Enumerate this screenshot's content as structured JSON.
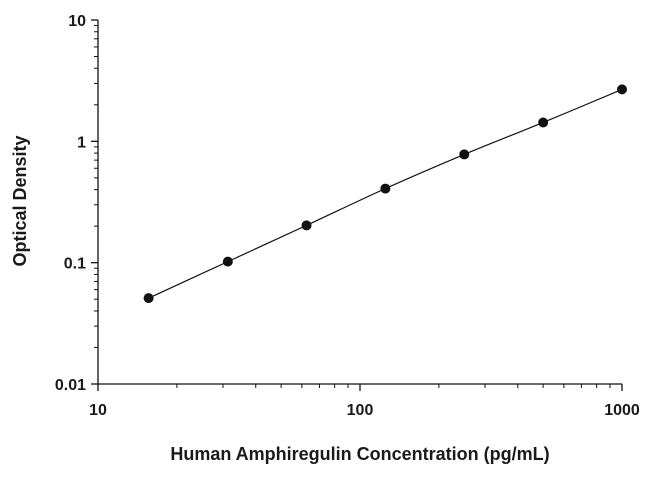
{
  "chart_data": {
    "type": "scatter",
    "title": "",
    "xlabel": "Human Amphiregulin Concentration (pg/mL)",
    "ylabel": "Optical Density",
    "x_scale": "log",
    "y_scale": "log",
    "xlim": [
      10,
      1000
    ],
    "ylim": [
      0.01,
      10
    ],
    "x_ticks": [
      10,
      100,
      1000
    ],
    "x_tick_labels": [
      "10",
      "100",
      "1000"
    ],
    "y_ticks": [
      0.01,
      0.1,
      1,
      10
    ],
    "y_tick_labels": [
      "0.01",
      "0.1",
      "1",
      "10"
    ],
    "grid": false,
    "legend": "none",
    "series": [
      {
        "points": [
          {
            "x": 15.6,
            "y": 0.051
          },
          {
            "x": 31.3,
            "y": 0.102
          },
          {
            "x": 62.5,
            "y": 0.203
          },
          {
            "x": 125,
            "y": 0.408
          },
          {
            "x": 250,
            "y": 0.78
          },
          {
            "x": 500,
            "y": 1.43
          },
          {
            "x": 1000,
            "y": 2.68
          }
        ],
        "fit_curve": true
      }
    ],
    "colors": {
      "marker": "#111111",
      "curve": "#111111",
      "axis": "#111111"
    }
  }
}
